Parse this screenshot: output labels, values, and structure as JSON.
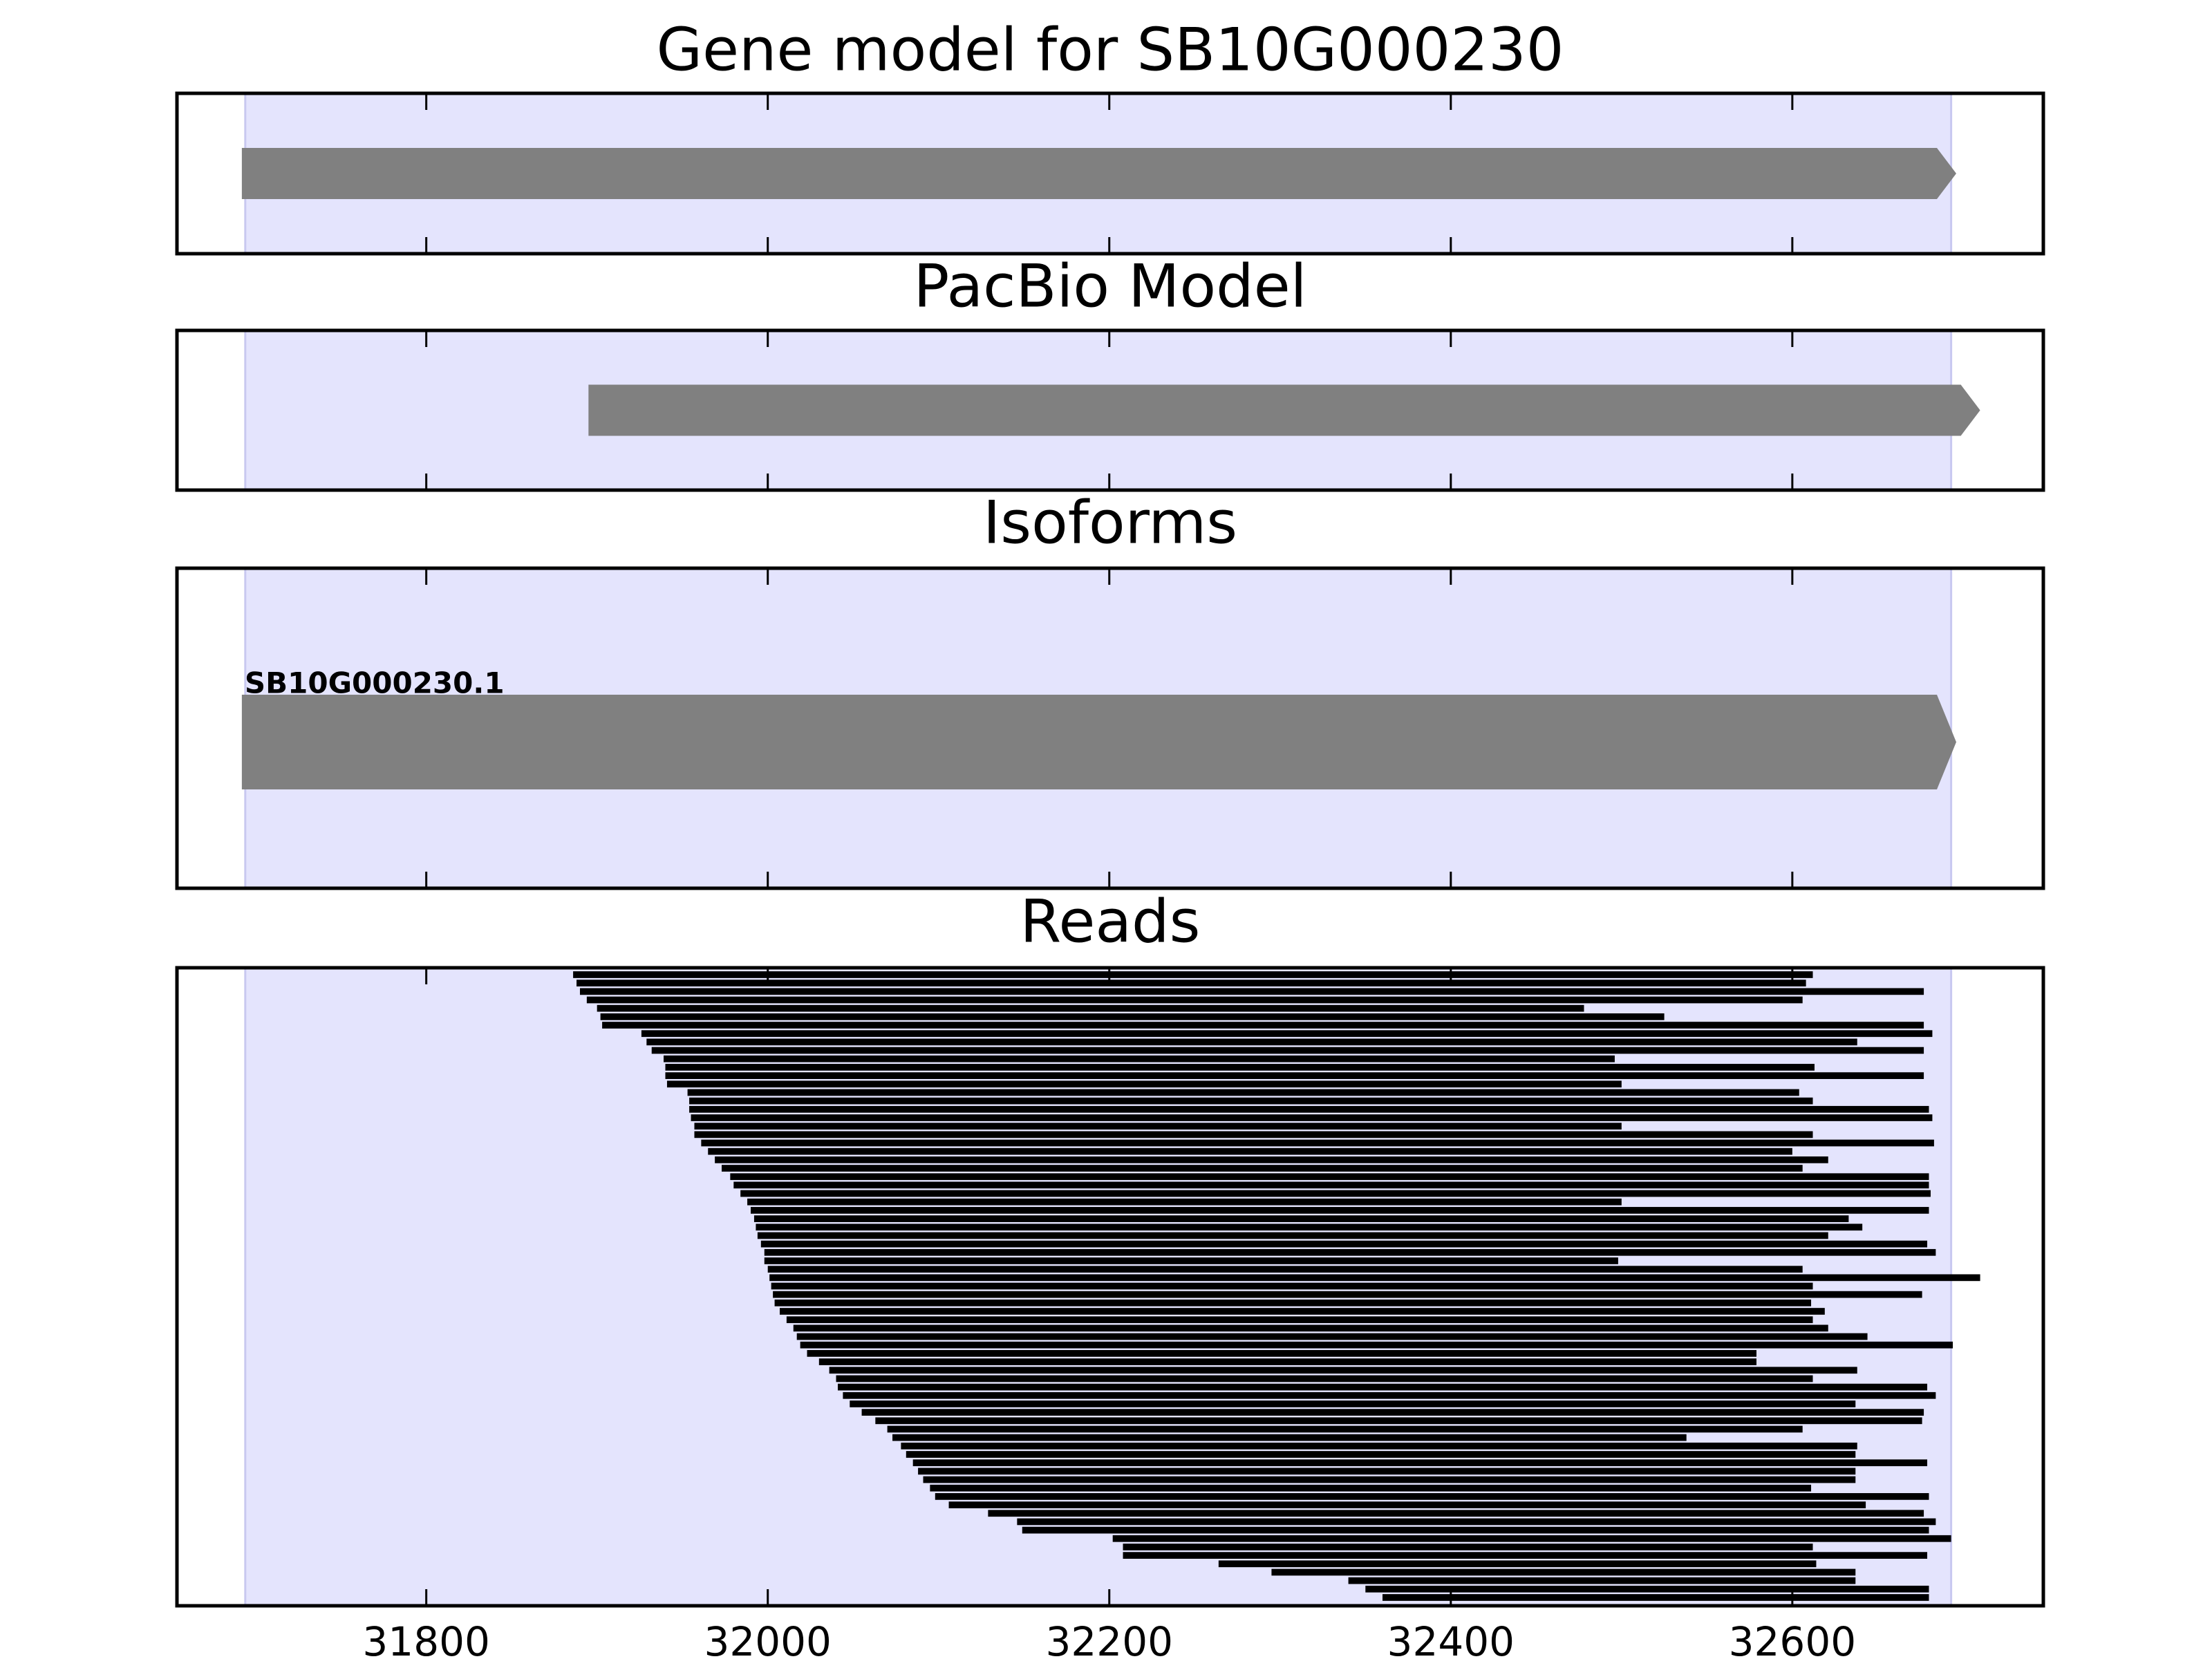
{
  "chart_data": {
    "type": "gene-track",
    "xlim": [
      31654,
      32747
    ],
    "xticks": [
      31800,
      32000,
      32200,
      32400,
      32600
    ],
    "region": [
      31694,
      32693
    ],
    "region_color": "#e4e4fd",
    "feature_color": "#808080",
    "read_color": "#000000",
    "panels": [
      {
        "title": "Gene model for SB10G000230",
        "features": [
          {
            "start": 31692,
            "end": 32696
          }
        ]
      },
      {
        "title": "PacBio Model",
        "features": [
          {
            "start": 31895,
            "end": 32710
          }
        ]
      },
      {
        "title": "Isoforms",
        "features": [
          {
            "label": "SB10G000230.1",
            "start": 31692,
            "end": 32696
          }
        ]
      },
      {
        "title": "Reads",
        "reads": {
          "starts": [
            31886,
            31888,
            31890,
            31894,
            31900,
            31902,
            31903,
            31926,
            31929,
            31932,
            31939,
            31940,
            31940,
            31941,
            31953,
            31954,
            31954,
            31955,
            31957,
            31957,
            31961,
            31965,
            31969,
            31973,
            31978,
            31980,
            31984,
            31988,
            31990,
            31992,
            31993,
            31994,
            31996,
            31998,
            31998,
            32000,
            32001,
            32002,
            32003,
            32004,
            32007,
            32011,
            32015,
            32017,
            32019,
            32023,
            32030,
            32036,
            32040,
            32041,
            32044,
            32048,
            32055,
            32063,
            32070,
            32073,
            32078,
            32081,
            32085,
            32088,
            32091,
            32095,
            32098,
            32106,
            32129,
            32146,
            32149,
            32202,
            32208,
            32208,
            32264,
            32295,
            32340,
            32350,
            32360
          ],
          "ends": [
            32612,
            32608,
            32677,
            32606,
            32478,
            32525,
            32677,
            32682,
            32638,
            32677,
            32496,
            32613,
            32677,
            32500,
            32604,
            32612,
            32680,
            32682,
            32500,
            32612,
            32683,
            32600,
            32621,
            32606,
            32680,
            32680,
            32681,
            32500,
            32680,
            32633,
            32641,
            32621,
            32679,
            32684,
            32498,
            32606,
            32710,
            32612,
            32676,
            32611,
            32619,
            32612,
            32621,
            32644,
            32694,
            32579,
            32579,
            32638,
            32612,
            32679,
            32684,
            32637,
            32677,
            32676,
            32606,
            32538,
            32638,
            32637,
            32679,
            32637,
            32637,
            32611,
            32680,
            32643,
            32677,
            32684,
            32680,
            32693,
            32612,
            32679,
            32614,
            32637,
            32637,
            32680,
            32680
          ]
        }
      }
    ]
  }
}
